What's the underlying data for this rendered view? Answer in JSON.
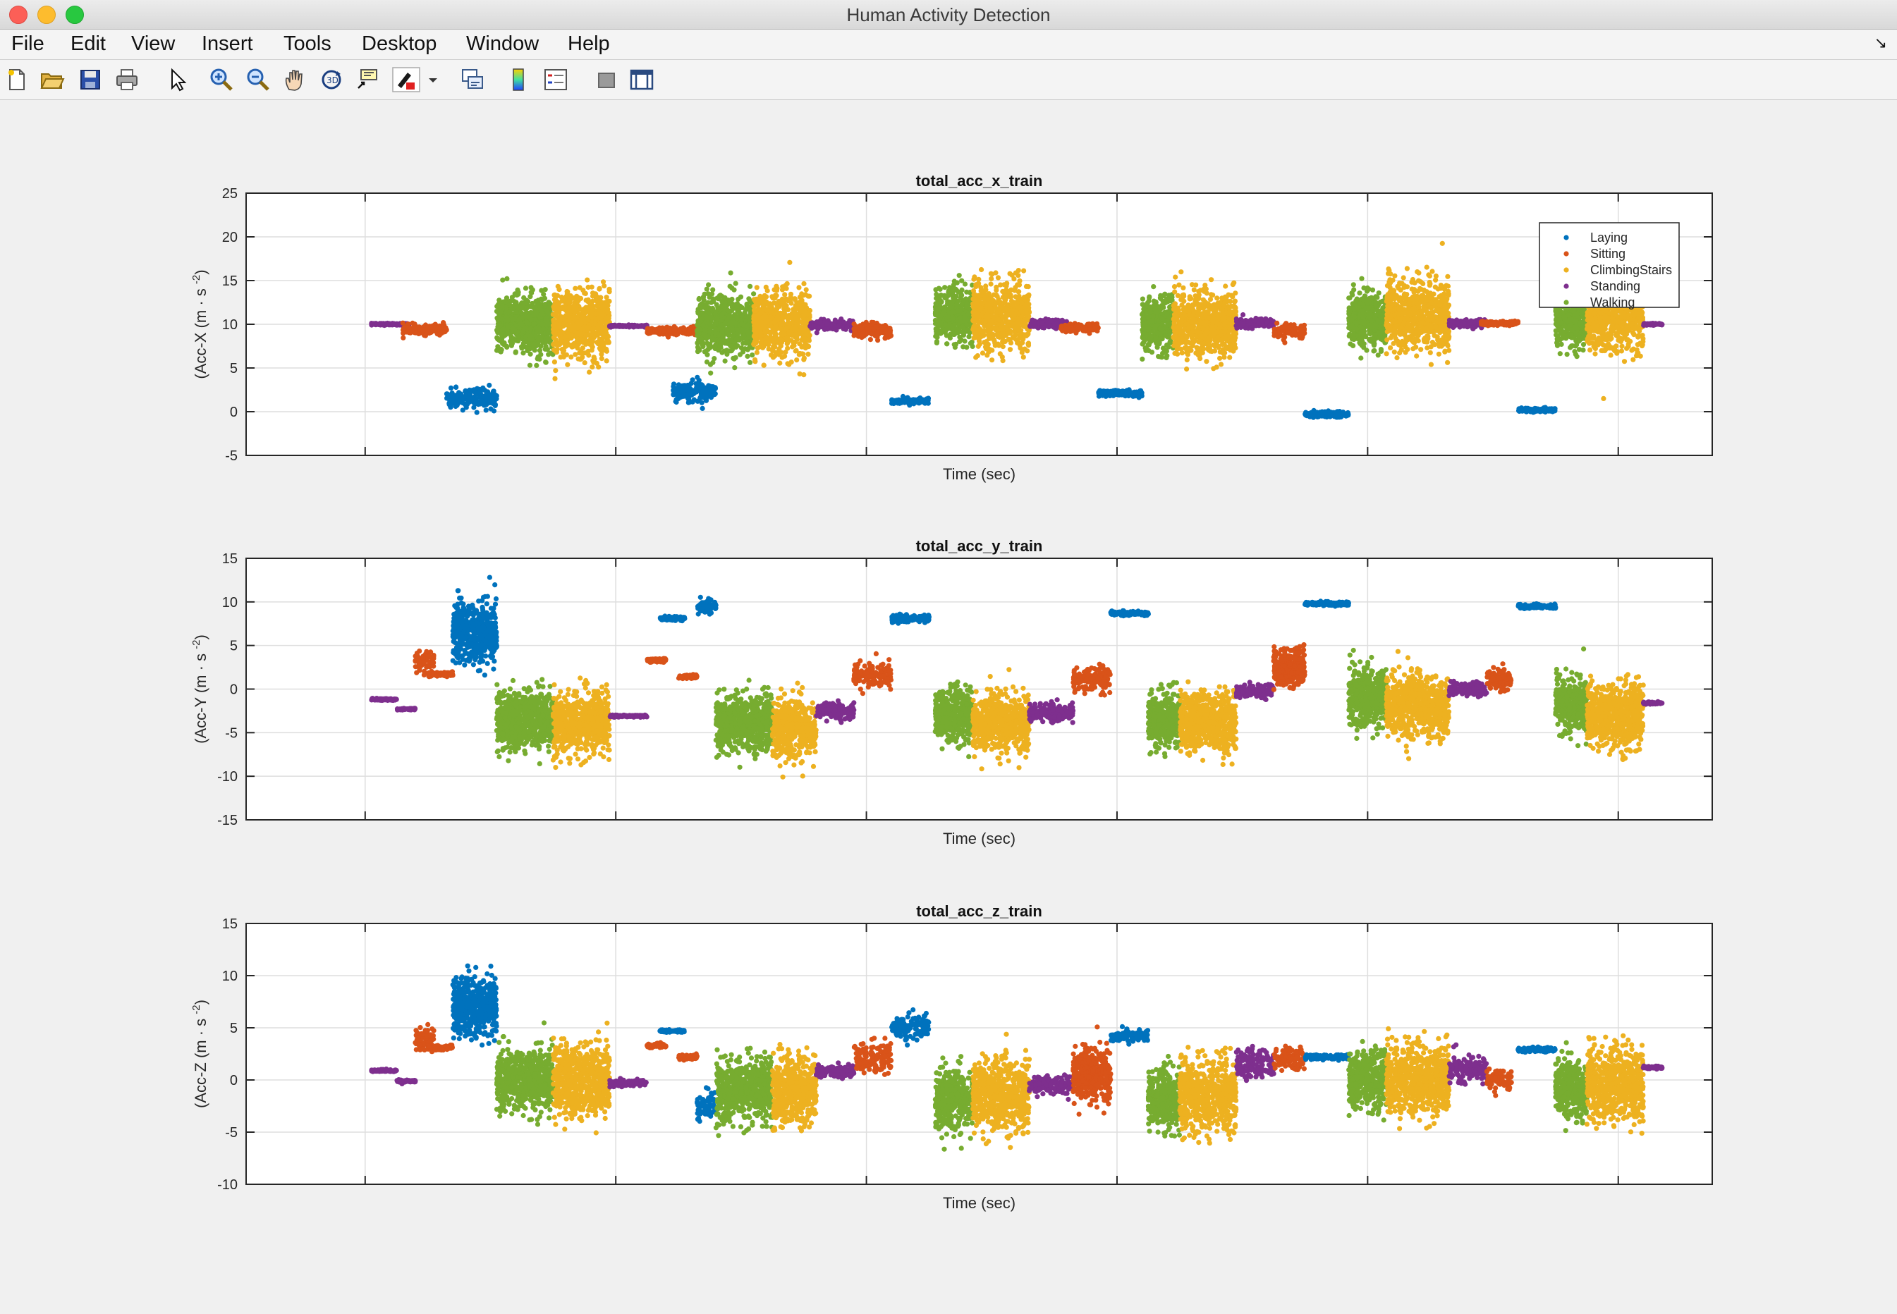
{
  "window": {
    "title": "Human Activity Detection"
  },
  "menu": [
    "File",
    "Edit",
    "View",
    "Insert",
    "Tools",
    "Desktop",
    "Window",
    "Help"
  ],
  "menu_corner_icon": "dock-arrow-icon",
  "toolbar": [
    "new-figure-icon",
    "open-file-icon",
    "save-icon",
    "print-icon",
    "pointer-icon",
    "zoom-in-icon",
    "zoom-out-icon",
    "pan-hand-icon",
    "rotate-3d-icon",
    "data-cursor-icon",
    "brush-icon",
    "link-plot-icon",
    "colorbar-icon",
    "legend-icon",
    "hide-plot-tools-icon",
    "show-plot-tools-icon"
  ],
  "colors": {
    "Laying": "#0072bd",
    "Sitting": "#d95319",
    "ClimbingStairs": "#edb120",
    "Standing": "#7e2f8e",
    "Walking": "#77ac30"
  },
  "chart_data": [
    {
      "type": "scatter",
      "title": "total_acc_x_train",
      "xlabel": "Time (sec)",
      "ylabel": "(Acc-X (m · s",
      "ylabel_sup": "-2",
      "ylabel_end": ")",
      "ylim": [
        -5,
        25
      ],
      "yticks": [
        "25",
        "20",
        "15",
        "10",
        "5",
        "0",
        "-5"
      ],
      "grid": true,
      "legend": {
        "placement": "top-right",
        "entries": [
          "Laying",
          "Sitting",
          "ClimbingStairs",
          "Standing",
          "Walking"
        ]
      },
      "segments": [
        {
          "c": "Standing",
          "x": [
            0.5,
            3.5
          ],
          "mean": 10.0,
          "noise": 0.1
        },
        {
          "c": "Sitting",
          "x": [
            3.0,
            6.5
          ],
          "mean": 9.4,
          "noise": 0.5
        },
        {
          "c": "Laying",
          "x": [
            6.5,
            10.5
          ],
          "mean": 1.5,
          "noise": 1.0
        },
        {
          "c": "Walking",
          "x": [
            10.5,
            15.0
          ],
          "mean": 10.0,
          "noise": 3.0
        },
        {
          "c": "ClimbingStairs",
          "x": [
            15.0,
            19.5
          ],
          "mean": 10.0,
          "noise": 3.4
        },
        {
          "c": "Standing",
          "x": [
            19.5,
            22.5
          ],
          "mean": 9.8,
          "noise": 0.1
        },
        {
          "c": "Sitting",
          "x": [
            22.5,
            26.5
          ],
          "mean": 9.2,
          "noise": 0.4
        },
        {
          "c": "Laying",
          "x": [
            24.5,
            28.0
          ],
          "mean": 2.2,
          "noise": 1.0
        },
        {
          "c": "Walking",
          "x": [
            26.5,
            31.0
          ],
          "mean": 10.0,
          "noise": 3.0
        },
        {
          "c": "ClimbingStairs",
          "x": [
            31.0,
            35.5
          ],
          "mean": 10.0,
          "noise": 3.4
        },
        {
          "c": "Standing",
          "x": [
            35.5,
            39.0
          ],
          "mean": 9.9,
          "noise": 0.5
        },
        {
          "c": "Sitting",
          "x": [
            39.0,
            42.0
          ],
          "mean": 9.3,
          "noise": 0.8
        },
        {
          "c": "Laying",
          "x": [
            42.0,
            45.0
          ],
          "mean": 1.2,
          "noise": 0.3
        },
        {
          "c": "Walking",
          "x": [
            45.5,
            48.5
          ],
          "mean": 11.0,
          "noise": 2.8
        },
        {
          "c": "ClimbingStairs",
          "x": [
            48.5,
            53.0
          ],
          "mean": 11.0,
          "noise": 3.4
        },
        {
          "c": "Standing",
          "x": [
            53.0,
            56.0
          ],
          "mean": 10.0,
          "noise": 0.5
        },
        {
          "c": "Sitting",
          "x": [
            55.5,
            58.5
          ],
          "mean": 9.6,
          "noise": 0.4
        },
        {
          "c": "Laying",
          "x": [
            58.5,
            62.0
          ],
          "mean": 2.1,
          "noise": 0.3
        },
        {
          "c": "Walking",
          "x": [
            62.0,
            64.5
          ],
          "mean": 10.0,
          "noise": 2.8
        },
        {
          "c": "ClimbingStairs",
          "x": [
            64.5,
            69.5
          ],
          "mean": 10.0,
          "noise": 3.3
        },
        {
          "c": "Standing",
          "x": [
            69.5,
            72.5
          ],
          "mean": 10.1,
          "noise": 0.5
        },
        {
          "c": "Sitting",
          "x": [
            72.5,
            75.0
          ],
          "mean": 9.2,
          "noise": 0.7
        },
        {
          "c": "Laying",
          "x": [
            75.0,
            78.5
          ],
          "mean": -0.3,
          "noise": 0.3
        },
        {
          "c": "Walking",
          "x": [
            78.5,
            81.5
          ],
          "mean": 10.5,
          "noise": 2.7
        },
        {
          "c": "ClimbingStairs",
          "x": [
            81.5,
            86.5
          ],
          "mean": 11.0,
          "noise": 3.5
        },
        {
          "c": "Standing",
          "x": [
            86.5,
            89.5
          ],
          "mean": 10.1,
          "noise": 0.4
        },
        {
          "c": "Sitting",
          "x": [
            89.0,
            92.0
          ],
          "mean": 10.1,
          "noise": 0.2
        },
        {
          "c": "Laying",
          "x": [
            92.0,
            95.0
          ],
          "mean": 0.2,
          "noise": 0.2
        },
        {
          "c": "Walking",
          "x": [
            95.0,
            97.5
          ],
          "mean": 10.5,
          "noise": 2.8
        },
        {
          "c": "ClimbingStairs",
          "x": [
            97.5,
            102.0
          ],
          "mean": 11.0,
          "noise": 3.6
        },
        {
          "c": "Standing",
          "x": [
            102.0,
            103.5
          ],
          "mean": 10.0,
          "noise": 0.1
        }
      ]
    },
    {
      "type": "scatter",
      "title": "total_acc_y_train",
      "xlabel": "Time (sec)",
      "ylabel": "(Acc-Y (m · s",
      "ylabel_sup": "-2",
      "ylabel_end": ")",
      "ylim": [
        -15,
        15
      ],
      "yticks": [
        "15",
        "10",
        "5",
        "0",
        "-5",
        "-10",
        "-15"
      ],
      "grid": true,
      "segments": [
        {
          "c": "Standing",
          "x": [
            0.5,
            2.5
          ],
          "mean": -1.2,
          "noise": 0.1
        },
        {
          "c": "Standing",
          "x": [
            2.5,
            4.0
          ],
          "mean": -2.3,
          "noise": 0.1
        },
        {
          "c": "Sitting",
          "x": [
            4.0,
            5.5
          ],
          "mean": 3.2,
          "noise": 1.2
        },
        {
          "c": "Sitting",
          "x": [
            5.0,
            7.0
          ],
          "mean": 1.7,
          "noise": 0.2
        },
        {
          "c": "Laying",
          "x": [
            7.0,
            10.5
          ],
          "mean": 6.5,
          "noise": 3.0
        },
        {
          "c": "Walking",
          "x": [
            10.5,
            15.0
          ],
          "mean": -3.5,
          "noise": 3.0
        },
        {
          "c": "ClimbingStairs",
          "x": [
            15.0,
            19.5
          ],
          "mean": -4.0,
          "noise": 3.0
        },
        {
          "c": "Standing",
          "x": [
            19.5,
            22.5
          ],
          "mean": -3.1,
          "noise": 0.1
        },
        {
          "c": "Sitting",
          "x": [
            22.5,
            24.0
          ],
          "mean": 3.3,
          "noise": 0.2
        },
        {
          "c": "Laying",
          "x": [
            23.5,
            25.5
          ],
          "mean": 8.1,
          "noise": 0.2
        },
        {
          "c": "Sitting",
          "x": [
            25.0,
            26.5
          ],
          "mean": 1.4,
          "noise": 0.2
        },
        {
          "c": "Laying",
          "x": [
            26.5,
            28.0
          ],
          "mean": 9.5,
          "noise": 0.7
        },
        {
          "c": "Walking",
          "x": [
            28.0,
            32.5
          ],
          "mean": -4.0,
          "noise": 3.0
        },
        {
          "c": "ClimbingStairs",
          "x": [
            32.5,
            36.0
          ],
          "mean": -4.5,
          "noise": 3.0
        },
        {
          "c": "Standing",
          "x": [
            36.0,
            39.0
          ],
          "mean": -2.5,
          "noise": 0.8
        },
        {
          "c": "Sitting",
          "x": [
            39.0,
            42.0
          ],
          "mean": 1.5,
          "noise": 1.3
        },
        {
          "c": "Laying",
          "x": [
            42.0,
            45.0
          ],
          "mean": 8.1,
          "noise": 0.4
        },
        {
          "c": "Walking",
          "x": [
            45.5,
            48.5
          ],
          "mean": -3.0,
          "noise": 2.8
        },
        {
          "c": "ClimbingStairs",
          "x": [
            48.5,
            53.0
          ],
          "mean": -4.0,
          "noise": 3.0
        },
        {
          "c": "Standing",
          "x": [
            53.0,
            56.5
          ],
          "mean": -2.7,
          "noise": 0.9
        },
        {
          "c": "Sitting",
          "x": [
            56.5,
            59.5
          ],
          "mean": 1.0,
          "noise": 1.3
        },
        {
          "c": "Laying",
          "x": [
            59.5,
            62.5
          ],
          "mean": 8.7,
          "noise": 0.2
        },
        {
          "c": "Walking",
          "x": [
            62.5,
            65.0
          ],
          "mean": -3.5,
          "noise": 2.8
        },
        {
          "c": "ClimbingStairs",
          "x": [
            65.0,
            69.5
          ],
          "mean": -3.8,
          "noise": 3.0
        },
        {
          "c": "Standing",
          "x": [
            69.5,
            72.5
          ],
          "mean": -0.3,
          "noise": 0.7
        },
        {
          "c": "Sitting",
          "x": [
            72.5,
            75.0
          ],
          "mean": 2.5,
          "noise": 1.8
        },
        {
          "c": "Laying",
          "x": [
            75.0,
            78.5
          ],
          "mean": 9.8,
          "noise": 0.2
        },
        {
          "c": "Walking",
          "x": [
            78.5,
            81.5
          ],
          "mean": -1.0,
          "noise": 3.0
        },
        {
          "c": "ClimbingStairs",
          "x": [
            81.5,
            86.5
          ],
          "mean": -2.0,
          "noise": 3.2
        },
        {
          "c": "Standing",
          "x": [
            86.5,
            89.5
          ],
          "mean": 0.0,
          "noise": 0.6
        },
        {
          "c": "Sitting",
          "x": [
            89.5,
            91.5
          ],
          "mean": 1.0,
          "noise": 1.2
        },
        {
          "c": "Laying",
          "x": [
            92.0,
            95.0
          ],
          "mean": 9.5,
          "noise": 0.2
        },
        {
          "c": "Walking",
          "x": [
            95.0,
            97.5
          ],
          "mean": -2.0,
          "noise": 2.8
        },
        {
          "c": "ClimbingStairs",
          "x": [
            97.5,
            102.0
          ],
          "mean": -3.0,
          "noise": 3.3
        },
        {
          "c": "Standing",
          "x": [
            102.0,
            103.5
          ],
          "mean": -1.6,
          "noise": 0.1
        }
      ]
    },
    {
      "type": "scatter",
      "title": "total_acc_z_train",
      "xlabel": "Time (sec)",
      "ylabel": "(Acc-Z (m · s",
      "ylabel_sup": "-2",
      "ylabel_end": ")",
      "ylim": [
        -10,
        15
      ],
      "yticks": [
        "15",
        "10",
        "5",
        "0",
        "-5",
        "-10"
      ],
      "grid": true,
      "segments": [
        {
          "c": "Standing",
          "x": [
            0.5,
            2.5
          ],
          "mean": 0.9,
          "noise": 0.1
        },
        {
          "c": "Standing",
          "x": [
            2.5,
            4.0
          ],
          "mean": -0.1,
          "noise": 0.1
        },
        {
          "c": "Sitting",
          "x": [
            4.0,
            5.5
          ],
          "mean": 4.0,
          "noise": 1.0
        },
        {
          "c": "Sitting",
          "x": [
            5.0,
            7.0
          ],
          "mean": 3.1,
          "noise": 0.2
        },
        {
          "c": "Laying",
          "x": [
            7.0,
            10.5
          ],
          "mean": 7.0,
          "noise": 2.5
        },
        {
          "c": "Walking",
          "x": [
            10.5,
            15.0
          ],
          "mean": 0.0,
          "noise": 2.6
        },
        {
          "c": "ClimbingStairs",
          "x": [
            15.0,
            19.5
          ],
          "mean": 0.0,
          "noise": 3.0
        },
        {
          "c": "Standing",
          "x": [
            19.5,
            22.5
          ],
          "mean": -0.3,
          "noise": 0.3
        },
        {
          "c": "Sitting",
          "x": [
            22.5,
            24.0
          ],
          "mean": 3.3,
          "noise": 0.2
        },
        {
          "c": "Laying",
          "x": [
            23.5,
            25.5
          ],
          "mean": 4.7,
          "noise": 0.1
        },
        {
          "c": "Sitting",
          "x": [
            25.0,
            26.5
          ],
          "mean": 2.2,
          "noise": 0.2
        },
        {
          "c": "Laying",
          "x": [
            26.5,
            28.0
          ],
          "mean": -2.5,
          "noise": 1.0
        },
        {
          "c": "Walking",
          "x": [
            28.0,
            32.5
          ],
          "mean": -1.0,
          "noise": 2.6
        },
        {
          "c": "ClimbingStairs",
          "x": [
            32.5,
            36.0
          ],
          "mean": -1.0,
          "noise": 3.0
        },
        {
          "c": "Standing",
          "x": [
            36.0,
            39.0
          ],
          "mean": 0.8,
          "noise": 0.5
        },
        {
          "c": "Sitting",
          "x": [
            39.0,
            42.0
          ],
          "mean": 2.0,
          "noise": 1.5
        },
        {
          "c": "Laying",
          "x": [
            42.0,
            45.0
          ],
          "mean": 5.0,
          "noise": 1.0
        },
        {
          "c": "Walking",
          "x": [
            45.5,
            48.5
          ],
          "mean": -1.8,
          "noise": 2.6
        },
        {
          "c": "ClimbingStairs",
          "x": [
            48.5,
            53.0
          ],
          "mean": -1.5,
          "noise": 3.0
        },
        {
          "c": "Standing",
          "x": [
            53.0,
            56.5
          ],
          "mean": -0.5,
          "noise": 0.8
        },
        {
          "c": "Sitting",
          "x": [
            56.5,
            59.5
          ],
          "mean": 0.5,
          "noise": 2.2
        },
        {
          "c": "Laying",
          "x": [
            59.5,
            62.5
          ],
          "mean": 4.2,
          "noise": 0.5
        },
        {
          "c": "Walking",
          "x": [
            62.5,
            65.0
          ],
          "mean": -2.0,
          "noise": 2.6
        },
        {
          "c": "ClimbingStairs",
          "x": [
            65.0,
            69.5
          ],
          "mean": -1.5,
          "noise": 3.0
        },
        {
          "c": "Standing",
          "x": [
            69.5,
            72.5
          ],
          "mean": 1.5,
          "noise": 1.4
        },
        {
          "c": "Sitting",
          "x": [
            72.5,
            75.0
          ],
          "mean": 2.0,
          "noise": 1.0
        },
        {
          "c": "Laying",
          "x": [
            75.0,
            78.5
          ],
          "mean": 2.2,
          "noise": 0.2
        },
        {
          "c": "Walking",
          "x": [
            78.5,
            81.5
          ],
          "mean": 0.0,
          "noise": 2.4
        },
        {
          "c": "ClimbingStairs",
          "x": [
            81.5,
            86.5
          ],
          "mean": 0.0,
          "noise": 3.0
        },
        {
          "c": "Standing",
          "x": [
            86.5,
            89.5
          ],
          "mean": 1.0,
          "noise": 1.2
        },
        {
          "c": "Sitting",
          "x": [
            89.5,
            91.5
          ],
          "mean": 0.0,
          "noise": 0.8
        },
        {
          "c": "Laying",
          "x": [
            92.0,
            95.0
          ],
          "mean": 2.9,
          "noise": 0.2
        },
        {
          "c": "Walking",
          "x": [
            95.0,
            97.5
          ],
          "mean": -0.8,
          "noise": 2.5
        },
        {
          "c": "ClimbingStairs",
          "x": [
            97.5,
            102.0
          ],
          "mean": -0.5,
          "noise": 3.0
        },
        {
          "c": "Standing",
          "x": [
            102.0,
            103.5
          ],
          "mean": 1.2,
          "noise": 0.1
        }
      ]
    }
  ]
}
